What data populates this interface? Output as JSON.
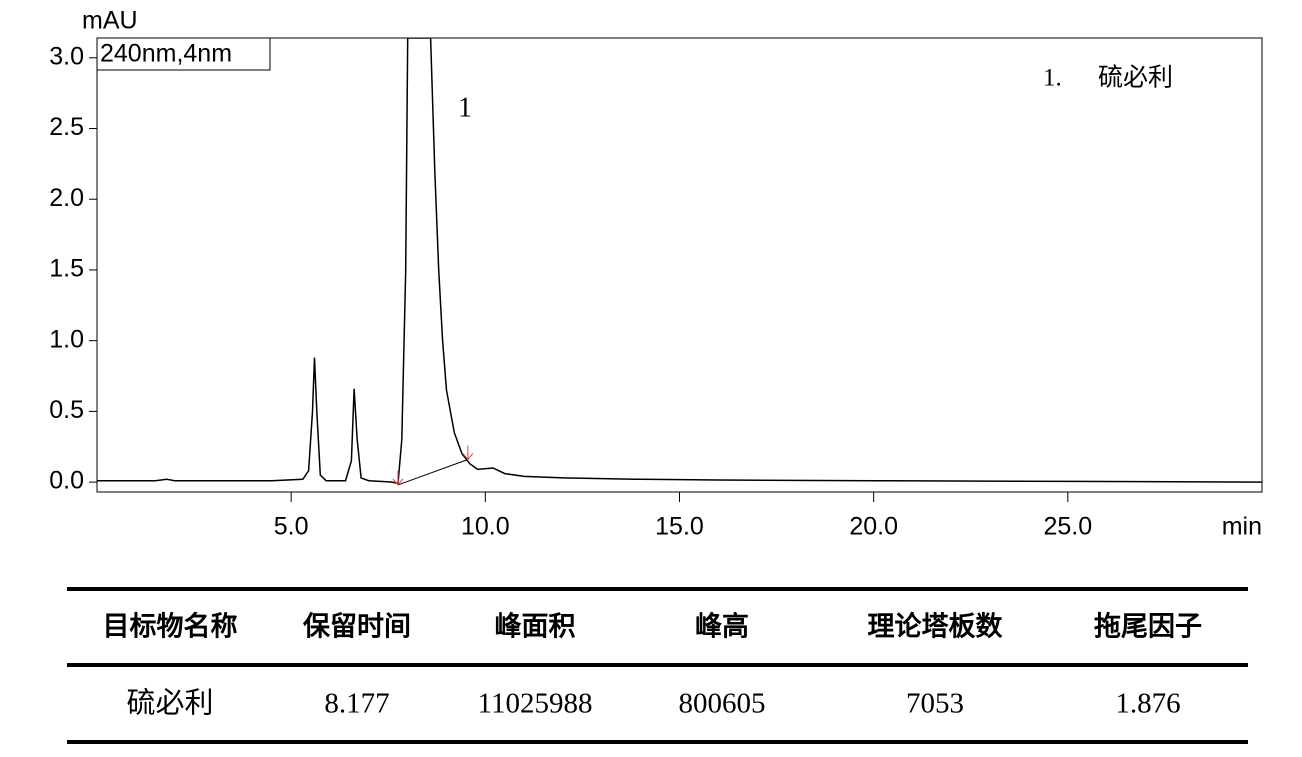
{
  "chart_data": {
    "type": "line",
    "color": "#000000",
    "ylabel": "mAU",
    "xlabel": "min",
    "annotations": {
      "detector": "240nm,4nm",
      "peak": "1",
      "peak_list_number": "1.",
      "peak_list_name": "硫必利"
    },
    "x": [
      0,
      1.5,
      1.8,
      2.0,
      4.5,
      5.3,
      5.45,
      5.55,
      5.6,
      5.66,
      5.75,
      5.9,
      6.4,
      6.55,
      6.62,
      6.7,
      6.8,
      7.0,
      7.6,
      7.75,
      7.85,
      7.95,
      8.0,
      8.59,
      8.7,
      8.8,
      8.9,
      9.0,
      9.2,
      9.4,
      9.6,
      9.8,
      10.2,
      10.5,
      11,
      12,
      14,
      16,
      20,
      25,
      30
    ],
    "values": [
      0.01,
      0.01,
      0.02,
      0.01,
      0.01,
      0.02,
      0.08,
      0.5,
      0.88,
      0.5,
      0.05,
      0.01,
      0.01,
      0.15,
      0.66,
      0.3,
      0.03,
      0.01,
      0.0,
      -0.01,
      0.3,
      1.5,
      3.14,
      3.14,
      2.2,
      1.5,
      1.0,
      0.65,
      0.35,
      0.2,
      0.13,
      0.09,
      0.1,
      0.06,
      0.04,
      0.03,
      0.02,
      0.015,
      0.01,
      0.005,
      0.0
    ],
    "integration_baseline": {
      "x": [
        7.75,
        9.55
      ],
      "y": [
        -0.02,
        0.16
      ],
      "color": "#e04040"
    },
    "xlim": [
      0,
      30
    ],
    "ylim": [
      -0.07,
      3.14
    ],
    "xticks": [
      {
        "value": 5,
        "label": "5.0"
      },
      {
        "value": 10,
        "label": "10.0"
      },
      {
        "value": 15,
        "label": "15.0"
      },
      {
        "value": 20,
        "label": "20.0"
      },
      {
        "value": 25,
        "label": "25.0"
      }
    ],
    "yticks": [
      {
        "value": 0,
        "label": "0.0"
      },
      0.5,
      {
        "value": 1,
        "label": "1.0"
      },
      1.5,
      {
        "value": 2,
        "label": "2.0"
      },
      2.5,
      {
        "value": 3,
        "label": "3.0"
      }
    ]
  },
  "table": {
    "header": [
      "目标物名称",
      "保留时间",
      "峰面积",
      "峰高",
      "理论塔板数",
      "拖尾因子"
    ],
    "rows": [
      [
        "硫必利",
        8.177,
        11025988,
        800605,
        7053,
        1.876
      ]
    ]
  }
}
